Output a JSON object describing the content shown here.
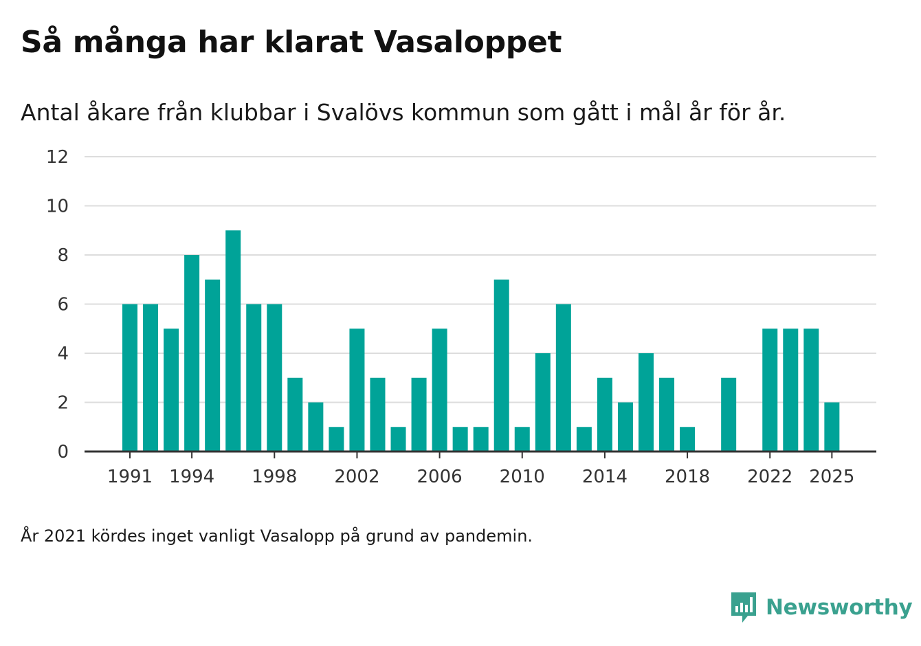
{
  "title": "Så många har klarat Vasaloppet",
  "subtitle": "Antal åkare från klubbar i Svalövs kommun som gått i mål år för år.",
  "footnote": "År 2021 kördes inget vanligt Vasalopp på grund av pandemin.",
  "brand": {
    "name": "Newsworthy",
    "icon": "newsworthy-logo-icon",
    "color": "#3aa18f"
  },
  "colors": {
    "bar": "#00a398",
    "grid": "#dddddd",
    "axis": "#333333"
  },
  "chart_data": {
    "type": "bar",
    "title": "Så många har klarat Vasaloppet",
    "xlabel": "",
    "ylabel": "",
    "categories": [
      1991,
      1992,
      1993,
      1994,
      1995,
      1996,
      1997,
      1998,
      1999,
      2000,
      2001,
      2002,
      2003,
      2004,
      2005,
      2006,
      2007,
      2008,
      2009,
      2010,
      2011,
      2012,
      2013,
      2014,
      2015,
      2016,
      2017,
      2018,
      2019,
      2020,
      2021,
      2022,
      2023,
      2024,
      2025
    ],
    "values": [
      6,
      6,
      5,
      8,
      7,
      9,
      6,
      6,
      3,
      2,
      1,
      5,
      3,
      1,
      3,
      5,
      1,
      1,
      7,
      1,
      4,
      6,
      1,
      3,
      2,
      4,
      3,
      1,
      0,
      3,
      0,
      5,
      5,
      5,
      2
    ],
    "ylim": [
      0,
      12
    ],
    "yticks": [
      0,
      2,
      4,
      6,
      8,
      10,
      12
    ],
    "xticks": [
      1991,
      1994,
      1998,
      2002,
      2006,
      2010,
      2014,
      2018,
      2022,
      2025
    ],
    "grid": true,
    "legend": "none"
  }
}
